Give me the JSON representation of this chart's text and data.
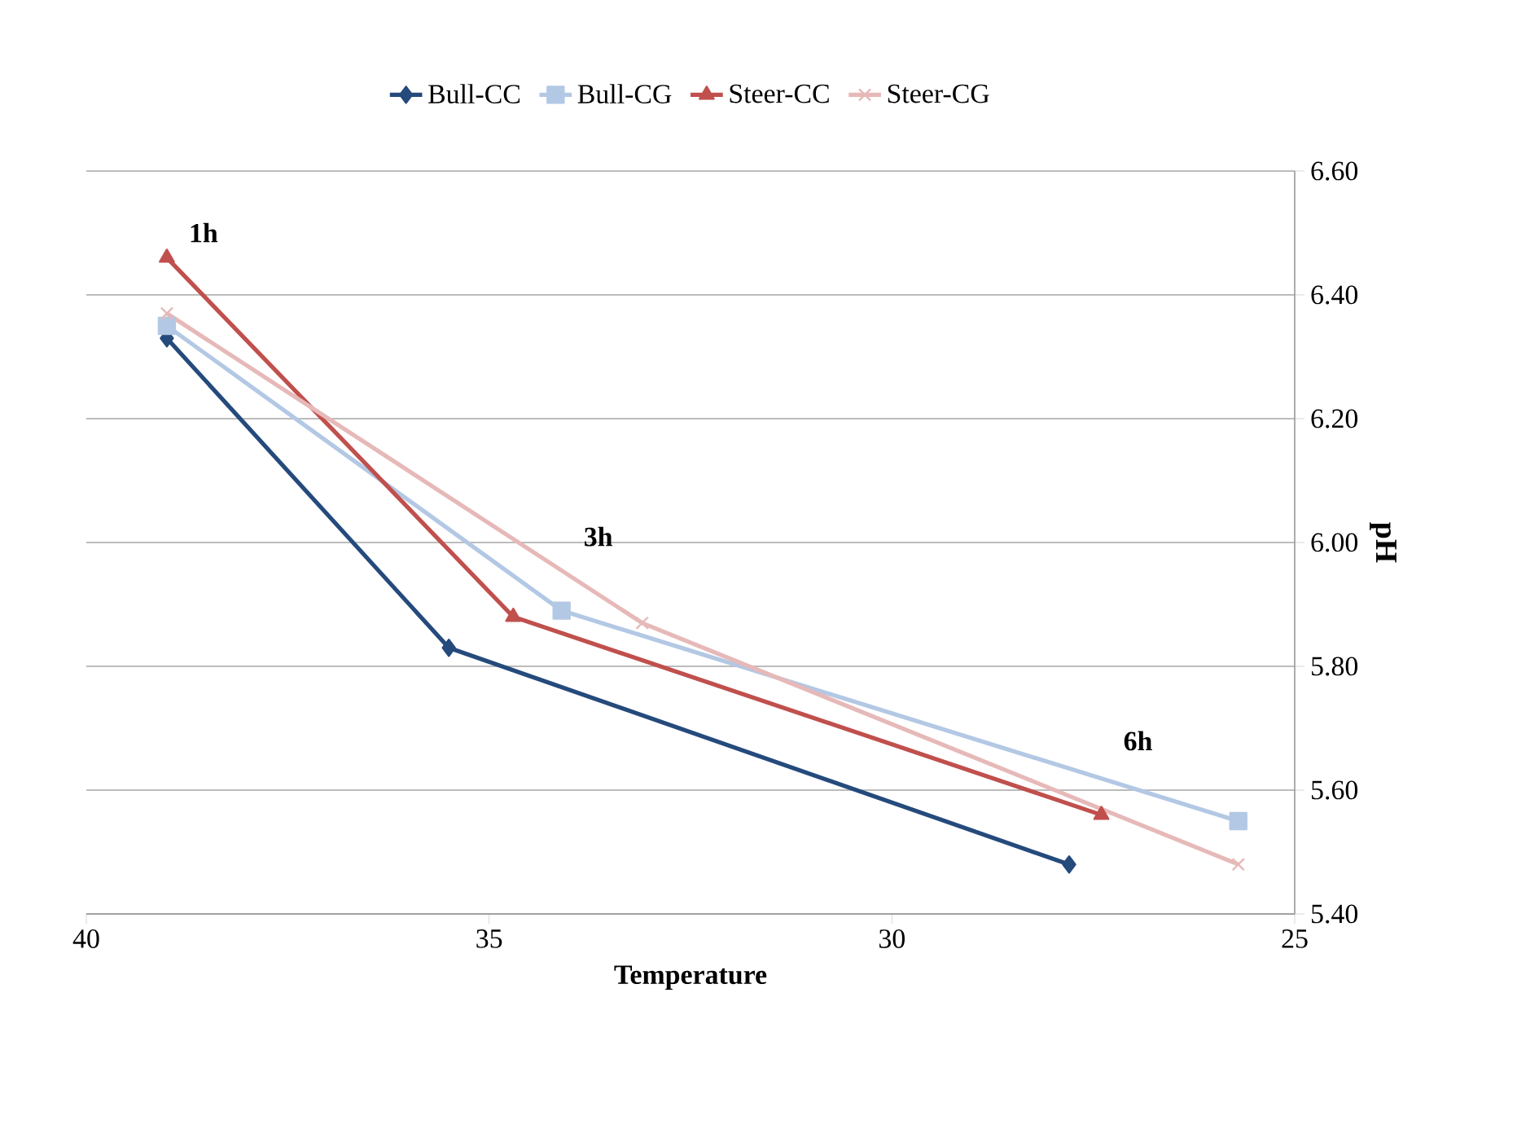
{
  "chart_data": {
    "type": "line",
    "xlabel": "Temperature",
    "ylabel": "pH",
    "xlim": [
      40,
      25
    ],
    "xticks": [
      40,
      35,
      30,
      25
    ],
    "ylim": [
      5.4,
      6.6
    ],
    "yticks": [
      {
        "value": 5.4,
        "label": "5.40"
      },
      {
        "value": 5.6,
        "label": "5.60"
      },
      {
        "value": 5.8,
        "label": "5.80"
      },
      {
        "value": 6.0,
        "label": "6.00"
      },
      {
        "value": 6.2,
        "label": "6.20"
      },
      {
        "value": 6.4,
        "label": "6.40"
      },
      {
        "value": 6.6,
        "label": "6.60"
      }
    ],
    "grid": "y",
    "legend": "top",
    "series": [
      {
        "name": "Bull-CC",
        "color": "#254a7c",
        "marker": "diamond",
        "x": [
          39.0,
          35.5,
          27.8
        ],
        "values": [
          6.33,
          5.83,
          5.48
        ]
      },
      {
        "name": "Bull-CG",
        "color": "#b3c8e4",
        "marker": "square",
        "x": [
          39.0,
          34.1,
          25.7
        ],
        "values": [
          6.35,
          5.89,
          5.55
        ]
      },
      {
        "name": "Steer-CC",
        "color": "#c0504d",
        "marker": "triangle",
        "x": [
          39.0,
          34.7,
          27.4
        ],
        "values": [
          6.46,
          5.88,
          5.56
        ]
      },
      {
        "name": "Steer-CG",
        "color": "#e6b9b8",
        "marker": "cross",
        "x": [
          39.0,
          33.1,
          25.7
        ],
        "values": [
          6.37,
          5.87,
          5.48
        ]
      }
    ],
    "annotations": [
      "1h",
      "3h",
      "6h"
    ]
  }
}
